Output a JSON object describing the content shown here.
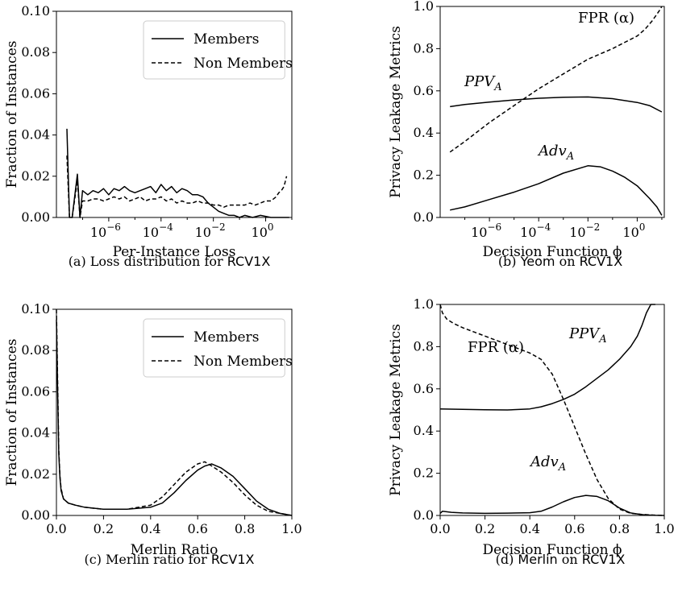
{
  "chart_data": [
    {
      "id": "a",
      "type": "line",
      "caption_prefix": "(a) Loss distribution for ",
      "caption_dataset": "RCV1X",
      "xlabel": "Per-Instance Loss",
      "ylabel": "Fraction of Instances",
      "xscale": "log",
      "xlim_exp": [
        -8,
        1
      ],
      "ylim": [
        0,
        0.1
      ],
      "yticks": [
        "0.00",
        "0.02",
        "0.04",
        "0.06",
        "0.08",
        "0.10"
      ],
      "xticks_exp": [
        "−6",
        "−4",
        "−2",
        "0"
      ],
      "legend": "top-right",
      "series": [
        {
          "name": "Members",
          "style": "solid",
          "x_exp": [
            -7.6,
            -7.5,
            -7.4,
            -7.2,
            -7.1,
            -7.0,
            -6.8,
            -6.6,
            -6.4,
            -6.2,
            -6.0,
            -5.8,
            -5.6,
            -5.4,
            -5.2,
            -5.0,
            -4.8,
            -4.6,
            -4.4,
            -4.2,
            -4.0,
            -3.8,
            -3.6,
            -3.4,
            -3.2,
            -3.0,
            -2.8,
            -2.6,
            -2.4,
            -2.2,
            -2.0,
            -1.8,
            -1.6,
            -1.4,
            -1.2,
            -1.0,
            -0.8,
            -0.5,
            -0.2,
            0.2,
            0.6,
            0.9
          ],
          "values": [
            0.043,
            0.0,
            0.0,
            0.021,
            0.0,
            0.013,
            0.011,
            0.013,
            0.012,
            0.014,
            0.011,
            0.014,
            0.013,
            0.015,
            0.013,
            0.012,
            0.013,
            0.014,
            0.015,
            0.012,
            0.016,
            0.013,
            0.015,
            0.012,
            0.014,
            0.013,
            0.011,
            0.011,
            0.01,
            0.007,
            0.005,
            0.003,
            0.002,
            0.001,
            0.001,
            0.0,
            0.001,
            0.0,
            0.001,
            0.0,
            0.0,
            0.0
          ]
        },
        {
          "name": "Non Members",
          "style": "dashed",
          "x_exp": [
            -7.6,
            -7.5,
            -7.4,
            -7.2,
            -7.1,
            -7.0,
            -6.8,
            -6.6,
            -6.4,
            -6.2,
            -6.0,
            -5.8,
            -5.6,
            -5.4,
            -5.2,
            -5.0,
            -4.8,
            -4.6,
            -4.4,
            -4.2,
            -4.0,
            -3.8,
            -3.6,
            -3.4,
            -3.2,
            -3.0,
            -2.8,
            -2.6,
            -2.4,
            -2.2,
            -2.0,
            -1.8,
            -1.6,
            -1.4,
            -1.2,
            -1.0,
            -0.8,
            -0.6,
            -0.4,
            -0.2,
            0.0,
            0.2,
            0.4,
            0.5,
            0.6,
            0.7,
            0.8
          ],
          "values": [
            0.03,
            0.0,
            0.0,
            0.018,
            0.0,
            0.008,
            0.008,
            0.009,
            0.009,
            0.008,
            0.009,
            0.01,
            0.009,
            0.01,
            0.008,
            0.009,
            0.01,
            0.008,
            0.009,
            0.009,
            0.01,
            0.008,
            0.009,
            0.007,
            0.008,
            0.007,
            0.007,
            0.008,
            0.007,
            0.007,
            0.006,
            0.006,
            0.005,
            0.006,
            0.006,
            0.006,
            0.006,
            0.007,
            0.006,
            0.007,
            0.008,
            0.008,
            0.01,
            0.012,
            0.013,
            0.015,
            0.02
          ]
        }
      ]
    },
    {
      "id": "b",
      "type": "line",
      "caption_prefix": "(b) ",
      "caption_method": "Yeom",
      "caption_mid": " on ",
      "caption_dataset": "RCV1X",
      "xlabel": "Decision Function ϕ",
      "ylabel": "Privacy Leakage Metrics",
      "xscale": "log",
      "xlim_exp": [
        -8,
        1.1
      ],
      "ylim": [
        0,
        1
      ],
      "yticks": [
        "0.0",
        "0.2",
        "0.4",
        "0.6",
        "0.8",
        "1.0"
      ],
      "xticks_exp": [
        "−6",
        "−4",
        "−2",
        "0"
      ],
      "annotations": {
        "fpr": "FPR (α)",
        "ppv": "PPV",
        "adv": "Adv",
        "sub": "A"
      },
      "series": [
        {
          "name": "FPR",
          "style": "dashed",
          "x_exp": [
            -7.6,
            -7.0,
            -6.0,
            -5.0,
            -4.0,
            -3.0,
            -2.0,
            -1.0,
            -0.5,
            0.0,
            0.3,
            0.6,
            0.9,
            1.0
          ],
          "values": [
            0.31,
            0.36,
            0.45,
            0.53,
            0.61,
            0.68,
            0.75,
            0.8,
            0.83,
            0.86,
            0.89,
            0.93,
            0.98,
            1.0
          ]
        },
        {
          "name": "PPV",
          "style": "solid",
          "x_exp": [
            -7.6,
            -7.0,
            -6.0,
            -5.0,
            -4.0,
            -3.0,
            -2.0,
            -1.0,
            0.0,
            0.5,
            1.0
          ],
          "values": [
            0.525,
            0.535,
            0.547,
            0.557,
            0.565,
            0.57,
            0.571,
            0.563,
            0.545,
            0.53,
            0.5
          ]
        },
        {
          "name": "Adv",
          "style": "solid",
          "x_exp": [
            -7.6,
            -7.0,
            -6.0,
            -5.0,
            -4.0,
            -3.0,
            -2.0,
            -1.5,
            -1.0,
            -0.5,
            0.0,
            0.5,
            0.8,
            1.0
          ],
          "values": [
            0.035,
            0.05,
            0.085,
            0.12,
            0.16,
            0.21,
            0.245,
            0.24,
            0.22,
            0.19,
            0.15,
            0.09,
            0.05,
            0.01
          ]
        }
      ]
    },
    {
      "id": "c",
      "type": "line",
      "caption_prefix": "(c) Merlin ratio for ",
      "caption_dataset": "RCV1X",
      "xlabel": "Merlin Ratio",
      "ylabel": "Fraction of Instances",
      "xlim": [
        0,
        1
      ],
      "ylim": [
        0,
        0.1
      ],
      "yticks": [
        "0.00",
        "0.02",
        "0.04",
        "0.06",
        "0.08",
        "0.10"
      ],
      "xticks": [
        "0.0",
        "0.2",
        "0.4",
        "0.6",
        "0.8",
        "1.0"
      ],
      "legend": "top-right",
      "series": [
        {
          "name": "Members",
          "style": "solid",
          "x": [
            0.0,
            0.005,
            0.01,
            0.015,
            0.02,
            0.03,
            0.05,
            0.08,
            0.12,
            0.2,
            0.3,
            0.4,
            0.45,
            0.5,
            0.55,
            0.6,
            0.63,
            0.66,
            0.7,
            0.75,
            0.8,
            0.85,
            0.9,
            0.95,
            1.0
          ],
          "values": [
            0.095,
            0.06,
            0.03,
            0.018,
            0.012,
            0.008,
            0.006,
            0.005,
            0.004,
            0.003,
            0.003,
            0.004,
            0.006,
            0.011,
            0.017,
            0.022,
            0.024,
            0.025,
            0.023,
            0.019,
            0.013,
            0.007,
            0.003,
            0.001,
            0.0
          ]
        },
        {
          "name": "Non Members",
          "style": "dashed",
          "x": [
            0.0,
            0.005,
            0.01,
            0.015,
            0.02,
            0.03,
            0.05,
            0.08,
            0.12,
            0.2,
            0.3,
            0.4,
            0.45,
            0.5,
            0.55,
            0.6,
            0.63,
            0.66,
            0.7,
            0.75,
            0.8,
            0.85,
            0.9,
            0.95,
            1.0
          ],
          "values": [
            0.1,
            0.065,
            0.032,
            0.019,
            0.013,
            0.008,
            0.006,
            0.005,
            0.004,
            0.003,
            0.003,
            0.005,
            0.009,
            0.015,
            0.021,
            0.025,
            0.026,
            0.024,
            0.021,
            0.016,
            0.01,
            0.005,
            0.002,
            0.001,
            0.0
          ]
        }
      ]
    },
    {
      "id": "d",
      "type": "line",
      "caption_prefix": "(d) ",
      "caption_method": "Merlin",
      "caption_mid": " on ",
      "caption_dataset": "RCV1X",
      "xlabel": "Decision Function ϕ",
      "ylabel": "Privacy Leakage Metrics",
      "xlim": [
        0,
        1
      ],
      "ylim": [
        0,
        1
      ],
      "yticks": [
        "0.0",
        "0.2",
        "0.4",
        "0.6",
        "0.8",
        "1.0"
      ],
      "xticks": [
        "0.0",
        "0.2",
        "0.4",
        "0.6",
        "0.8",
        "1.0"
      ],
      "annotations": {
        "fpr": "FPR (α)",
        "ppv": "PPV",
        "adv": "Adv",
        "sub": "A"
      },
      "series": [
        {
          "name": "FPR",
          "style": "dashed",
          "x": [
            0.0,
            0.01,
            0.03,
            0.06,
            0.1,
            0.15,
            0.2,
            0.3,
            0.4,
            0.45,
            0.5,
            0.55,
            0.6,
            0.65,
            0.7,
            0.75,
            0.8,
            0.85,
            0.9,
            0.95,
            1.0
          ],
          "values": [
            1.0,
            0.96,
            0.93,
            0.91,
            0.89,
            0.87,
            0.85,
            0.81,
            0.77,
            0.74,
            0.67,
            0.55,
            0.42,
            0.29,
            0.17,
            0.08,
            0.03,
            0.01,
            0.005,
            0.002,
            0.0
          ]
        },
        {
          "name": "PPV",
          "style": "solid",
          "x": [
            0.0,
            0.1,
            0.2,
            0.3,
            0.4,
            0.45,
            0.5,
            0.55,
            0.6,
            0.65,
            0.7,
            0.75,
            0.8,
            0.85,
            0.88,
            0.9,
            0.92,
            0.94,
            0.96
          ],
          "values": [
            0.505,
            0.503,
            0.501,
            0.5,
            0.505,
            0.515,
            0.53,
            0.55,
            0.575,
            0.61,
            0.65,
            0.69,
            0.74,
            0.8,
            0.85,
            0.9,
            0.96,
            1.0,
            1.0
          ]
        },
        {
          "name": "Adv",
          "style": "solid",
          "x": [
            0.0,
            0.01,
            0.05,
            0.1,
            0.2,
            0.3,
            0.4,
            0.45,
            0.5,
            0.55,
            0.6,
            0.65,
            0.7,
            0.75,
            0.8,
            0.85,
            0.9,
            0.95,
            1.0
          ],
          "values": [
            0.01,
            0.02,
            0.015,
            0.012,
            0.01,
            0.011,
            0.013,
            0.02,
            0.04,
            0.065,
            0.085,
            0.095,
            0.09,
            0.07,
            0.035,
            0.012,
            0.004,
            0.001,
            0.0
          ]
        }
      ]
    }
  ]
}
